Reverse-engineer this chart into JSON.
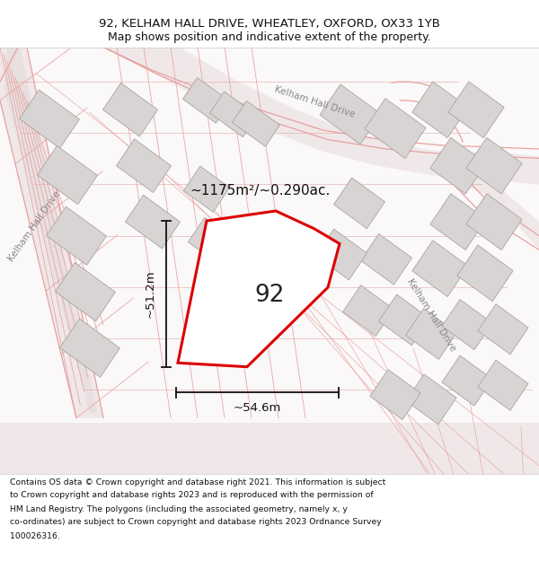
{
  "title_line1": "92, KELHAM HALL DRIVE, WHEATLEY, OXFORD, OX33 1YB",
  "title_line2": "Map shows position and indicative extent of the property.",
  "area_label": "~1175m²/~0.290ac.",
  "number_label": "92",
  "width_label": "~54.6m",
  "height_label": "~51.2m",
  "street_top": "Kelham Hall Drive",
  "street_right": "Kelham Hall Drive",
  "street_left": "Kelham Hall Drive",
  "footer_lines": [
    "Contains OS data © Crown copyright and database right 2021. This information is subject",
    "to Crown copyright and database rights 2023 and is reproduced with the permission of",
    "HM Land Registry. The polygons (including the associated geometry, namely x, y",
    "co-ordinates) are subject to Crown copyright and database rights 2023 Ordnance Survey",
    "100026316."
  ],
  "map_bg": "#faf8f8",
  "building_fill": "#d8d4d4",
  "building_edge": "#aaa4a4",
  "road_line_color": "#e8a0a0",
  "road_fill": "#f0e8e8",
  "road_center_fill": "#e8e0e0",
  "plot_edge": "#dd0000",
  "plot_fill": "none",
  "dim_color": "#111111",
  "text_color": "#111111",
  "street_color": "#888888",
  "label_color": "#222222"
}
